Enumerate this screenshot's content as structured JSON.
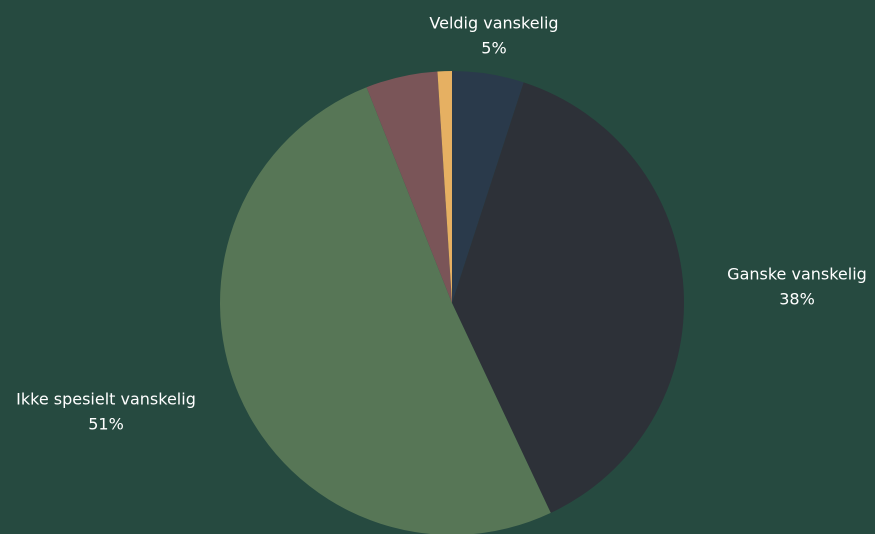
{
  "chart_data": {
    "type": "pie",
    "categories": [
      "Veldig vanskelig",
      "Ganske vanskelig",
      "Ikke spesielt vanskelig",
      null,
      null
    ],
    "values": [
      5,
      38,
      51,
      5,
      1
    ],
    "value_labels": [
      "5%",
      "38%",
      "51%",
      null,
      null
    ],
    "colors": [
      "#2a3a4b",
      "#2d3138",
      "#577656",
      "#7a5558",
      "#e6b062"
    ],
    "background": "#264a40"
  }
}
